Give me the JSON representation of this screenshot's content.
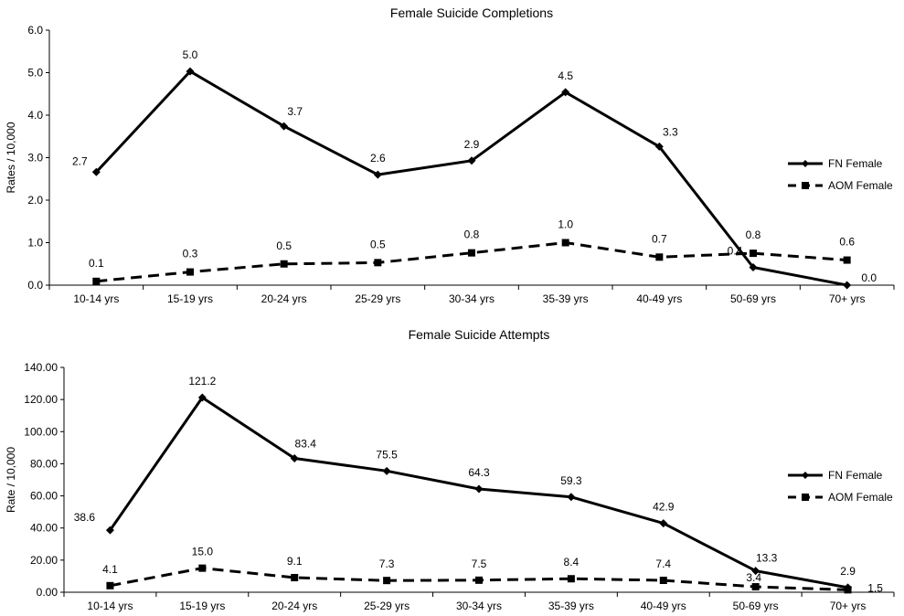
{
  "chart_data": [
    {
      "type": "line",
      "title": "Female Suicide Completions",
      "ylabel": "Rates / 10,000",
      "xlabel": "",
      "categories": [
        "10-14 yrs",
        "15-19 yrs",
        "20-24 yrs",
        "25-29 yrs",
        "30-34 yrs",
        "35-39 yrs",
        "40-49 yrs",
        "50-69 yrs",
        "70+ yrs"
      ],
      "ylim": [
        0,
        6
      ],
      "yticks": [
        "0.0",
        "1.0",
        "2.0",
        "3.0",
        "4.0",
        "5.0",
        "6.0"
      ],
      "legend_position": "right",
      "series": [
        {
          "name": "FN Female",
          "style": "solid",
          "marker": "diamond",
          "values": [
            2.66,
            5.03,
            3.74,
            2.6,
            2.93,
            4.54,
            3.26,
            0.42,
            0.0
          ],
          "labels": [
            "2.7",
            "5.0",
            "3.7",
            "2.6",
            "2.9",
            "4.5",
            "3.3",
            "0.4",
            "0.0"
          ]
        },
        {
          "name": "AOM Female",
          "style": "dashed",
          "marker": "square",
          "values": [
            0.09,
            0.31,
            0.5,
            0.53,
            0.76,
            1.0,
            0.66,
            0.75,
            0.59
          ],
          "labels": [
            "0.1",
            "0.3",
            "0.5",
            "0.5",
            "0.8",
            "1.0",
            "0.7",
            "0.8",
            "0.6"
          ]
        }
      ]
    },
    {
      "type": "line",
      "title": "Female Suicide Attempts",
      "ylabel": "Rate / 10,000",
      "xlabel": "",
      "categories": [
        "10-14 yrs",
        "15-19 yrs",
        "20-24 yrs",
        "25-29 yrs",
        "30-34 yrs",
        "35-39 yrs",
        "40-49 yrs",
        "50-69 yrs",
        "70+ yrs"
      ],
      "ylim": [
        0,
        140
      ],
      "yticks": [
        "0.00",
        "20.00",
        "40.00",
        "60.00",
        "80.00",
        "100.00",
        "120.00",
        "140.00"
      ],
      "legend_position": "right",
      "series": [
        {
          "name": "FN Female",
          "style": "solid",
          "marker": "diamond",
          "values": [
            38.6,
            121.2,
            83.4,
            75.5,
            64.3,
            59.3,
            42.9,
            13.3,
            2.9
          ],
          "labels": [
            "38.6",
            "121.2",
            "83.4",
            "75.5",
            "64.3",
            "59.3",
            "42.9",
            "13.3",
            "2.9"
          ]
        },
        {
          "name": "AOM Female",
          "style": "dashed",
          "marker": "square",
          "values": [
            4.1,
            15.0,
            9.1,
            7.3,
            7.5,
            8.4,
            7.4,
            3.4,
            1.5
          ],
          "labels": [
            "4.1",
            "15.0",
            "9.1",
            "7.3",
            "7.5",
            "8.4",
            "7.4",
            "3.4",
            "1.5"
          ]
        }
      ]
    }
  ]
}
